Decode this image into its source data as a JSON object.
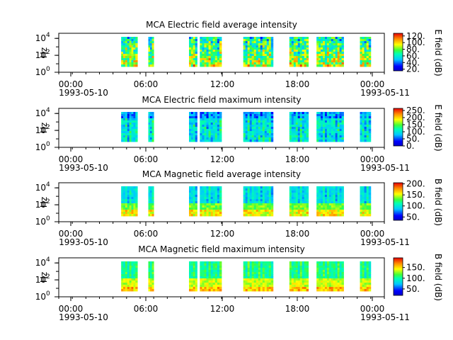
{
  "chart_data": [
    {
      "type": "heatmap",
      "title": "MCA  Electric field average intensity",
      "ylabel": "Hz",
      "yscale": "log",
      "ylim": [
        1,
        40000
      ],
      "y_ticks": [
        {
          "base": "10",
          "exp": "0"
        },
        {
          "base": "10",
          "exp": "2"
        },
        {
          "base": "10",
          "exp": "4"
        }
      ],
      "x_ticks": [
        {
          "time": "00:00",
          "date": "1993-05-10"
        },
        {
          "time": "06:00",
          "date": ""
        },
        {
          "time": "12:00",
          "date": ""
        },
        {
          "time": "18:00",
          "date": ""
        },
        {
          "time": "00:00",
          "date": "1993-05-11"
        }
      ],
      "colorbar": {
        "label": "E field (dB)",
        "range": [
          15,
          128
        ],
        "ticks": [
          "20.",
          "40.",
          "60.",
          "80.",
          "100.",
          "120."
        ]
      },
      "data_segments": [
        [
          5.6,
          6.8
        ],
        [
          7.6,
          8.0
        ],
        [
          10.6,
          11.2
        ],
        [
          11.4,
          13.0
        ],
        [
          14.6,
          16.8
        ],
        [
          18.0,
          19.4
        ],
        [
          20.0,
          22.0
        ],
        [
          23.2,
          24.0
        ]
      ],
      "tone": "hot"
    },
    {
      "type": "heatmap",
      "title": "MCA  Electric field maximum intensity",
      "ylabel": "Hz",
      "yscale": "log",
      "ylim": [
        1,
        40000
      ],
      "y_ticks": [
        {
          "base": "10",
          "exp": "0"
        },
        {
          "base": "10",
          "exp": "2"
        },
        {
          "base": "10",
          "exp": "4"
        }
      ],
      "x_ticks": [
        {
          "time": "00:00",
          "date": "1993-05-10"
        },
        {
          "time": "06:00",
          "date": ""
        },
        {
          "time": "12:00",
          "date": ""
        },
        {
          "time": "18:00",
          "date": ""
        },
        {
          "time": "00:00",
          "date": "1993-05-11"
        }
      ],
      "colorbar": {
        "label": "E field (dB)",
        "range": [
          0,
          265
        ],
        "ticks": [
          "0.",
          "50.",
          "100.",
          "150.",
          "200.",
          "250."
        ]
      },
      "data_segments": [
        [
          5.6,
          6.8
        ],
        [
          7.6,
          8.0
        ],
        [
          10.6,
          11.2
        ],
        [
          11.4,
          13.0
        ],
        [
          14.6,
          16.8
        ],
        [
          18.0,
          19.4
        ],
        [
          20.0,
          22.0
        ],
        [
          23.2,
          24.0
        ]
      ],
      "tone": "cool"
    },
    {
      "type": "heatmap",
      "title": "MCA  Magnetic field average intensity",
      "ylabel": "Hz",
      "yscale": "log",
      "ylim": [
        1,
        40000
      ],
      "y_ticks": [
        {
          "base": "10",
          "exp": "0"
        },
        {
          "base": "10",
          "exp": "2"
        },
        {
          "base": "10",
          "exp": "4"
        }
      ],
      "x_ticks": [
        {
          "time": "00:00",
          "date": "1993-05-10"
        },
        {
          "time": "06:00",
          "date": ""
        },
        {
          "time": "12:00",
          "date": ""
        },
        {
          "time": "18:00",
          "date": ""
        },
        {
          "time": "00:00",
          "date": "1993-05-11"
        }
      ],
      "colorbar": {
        "label": "B field (dB)",
        "range": [
          35,
          205
        ],
        "ticks": [
          "50.",
          "100.",
          "150.",
          "200."
        ]
      },
      "data_segments": [
        [
          5.6,
          6.8
        ],
        [
          7.6,
          8.0
        ],
        [
          10.6,
          11.2
        ],
        [
          11.4,
          13.0
        ],
        [
          14.6,
          16.8
        ],
        [
          18.0,
          19.4
        ],
        [
          20.0,
          22.0
        ],
        [
          23.2,
          24.0
        ]
      ],
      "tone": "layered"
    },
    {
      "type": "heatmap",
      "title": "MCA  Magnetic field maximum intensity",
      "ylabel": "Hz",
      "yscale": "log",
      "ylim": [
        1,
        40000
      ],
      "y_ticks": [
        {
          "base": "10",
          "exp": "0"
        },
        {
          "base": "10",
          "exp": "2"
        },
        {
          "base": "10",
          "exp": "4"
        }
      ],
      "x_ticks": [
        {
          "time": "00:00",
          "date": "1993-05-10"
        },
        {
          "time": "06:00",
          "date": ""
        },
        {
          "time": "12:00",
          "date": ""
        },
        {
          "time": "18:00",
          "date": ""
        },
        {
          "time": "00:00",
          "date": "1993-05-11"
        }
      ],
      "colorbar": {
        "label": "B field (dB)",
        "range": [
          20,
          195
        ],
        "ticks": [
          "50.",
          "100.",
          "150."
        ]
      },
      "data_segments": [
        [
          5.6,
          6.8
        ],
        [
          7.6,
          8.0
        ],
        [
          10.6,
          11.2
        ],
        [
          11.4,
          13.0
        ],
        [
          14.6,
          16.8
        ],
        [
          18.0,
          19.4
        ],
        [
          20.0,
          22.0
        ],
        [
          23.2,
          24.0
        ]
      ],
      "tone": "layered-hot"
    }
  ]
}
